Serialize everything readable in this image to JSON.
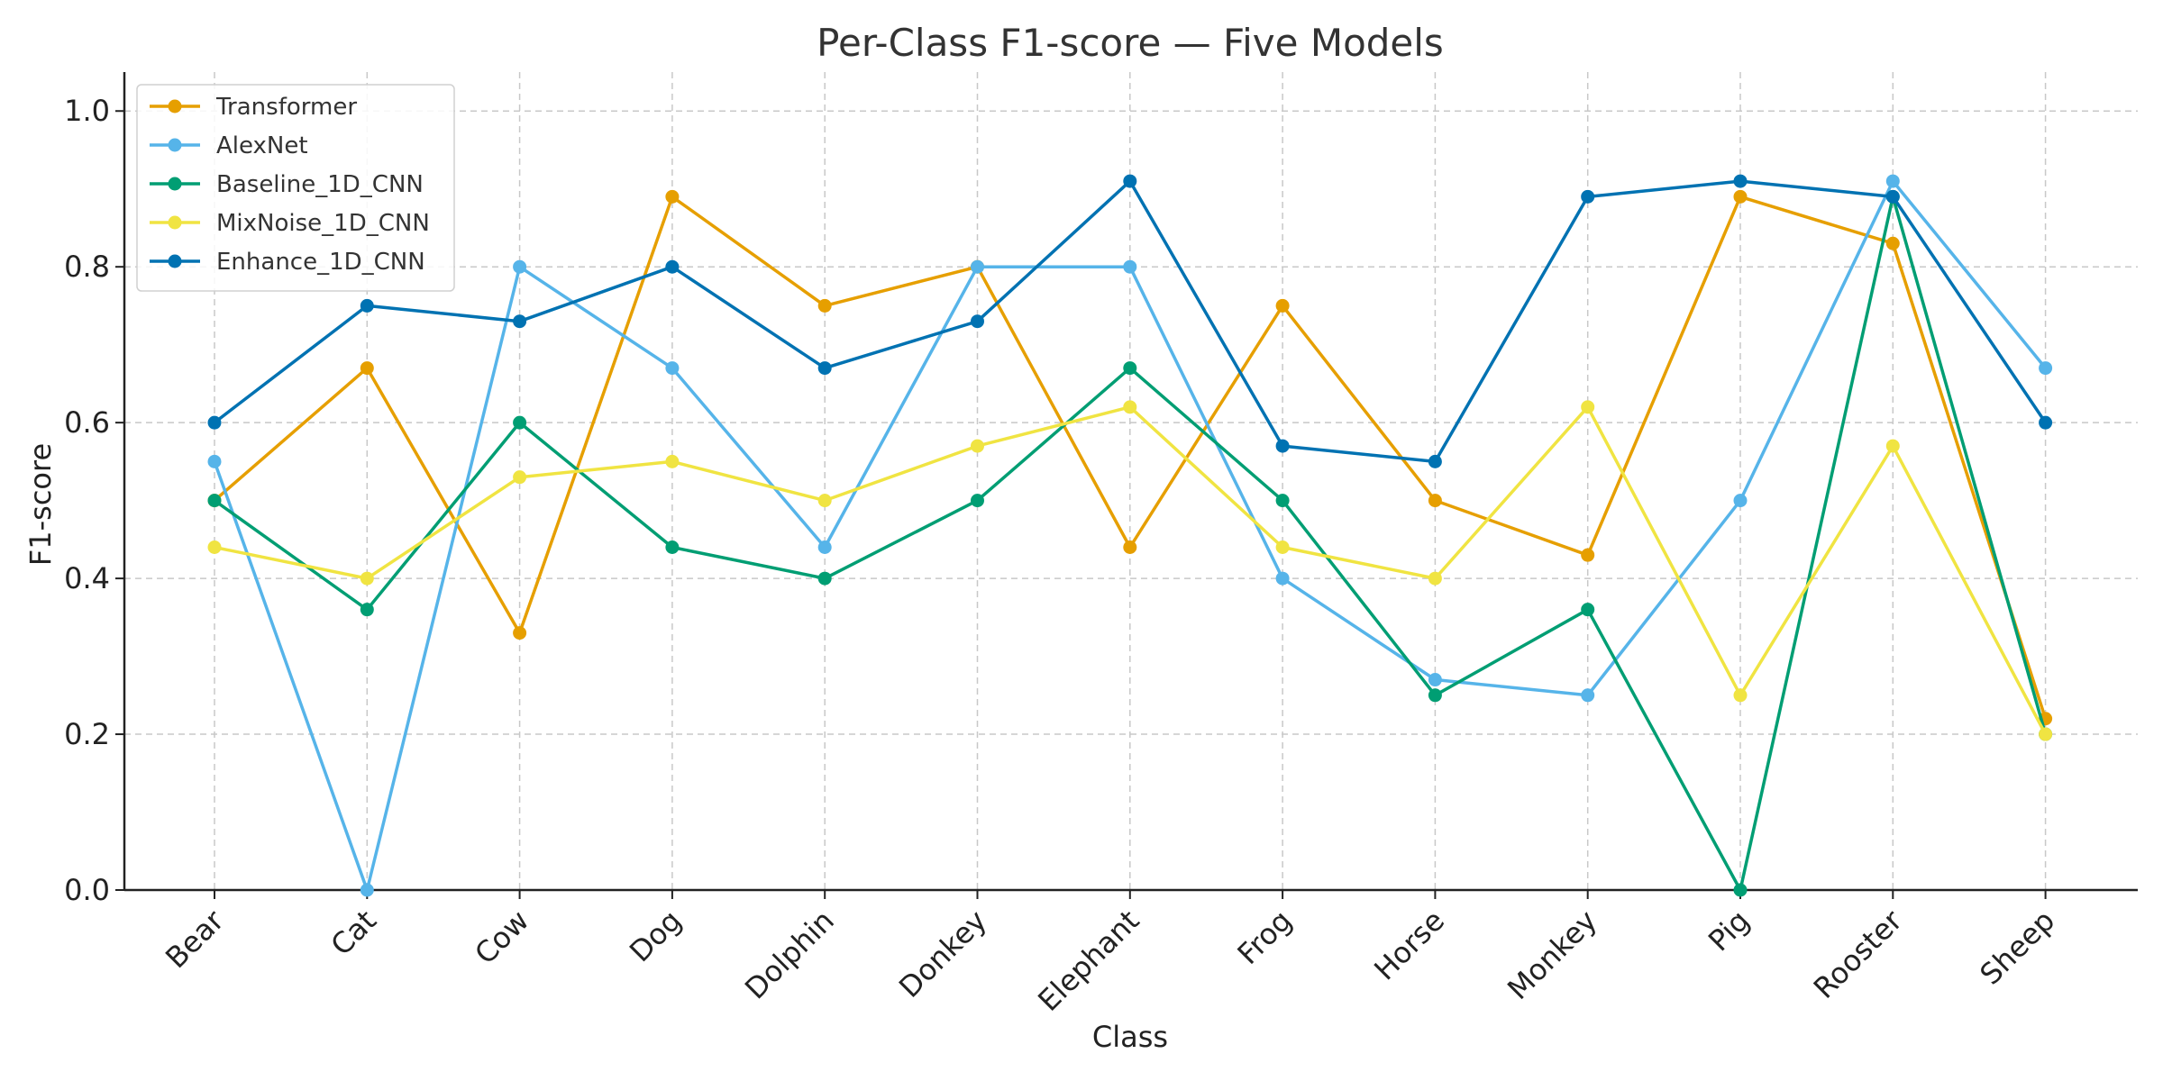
{
  "chart_data": {
    "type": "line",
    "title": "Per-Class F1-score — Five Models",
    "xlabel": "Class",
    "ylabel": "F1-score",
    "ylim": [
      0,
      1.05
    ],
    "yticks": [
      "0.0",
      "0.2",
      "0.4",
      "0.6",
      "0.8",
      "1.0"
    ],
    "grid": true,
    "legend_position": "top-left",
    "categories": [
      "Bear",
      "Cat",
      "Cow",
      "Dog",
      "Dolphin",
      "Donkey",
      "Elephant",
      "Frog",
      "Horse",
      "Monkey",
      "Pig",
      "Rooster",
      "Sheep"
    ],
    "series": [
      {
        "name": "Transformer",
        "color": "#E69F00",
        "values": [
          0.5,
          0.67,
          0.33,
          0.89,
          0.75,
          0.8,
          0.44,
          0.75,
          0.5,
          0.43,
          0.89,
          0.83,
          0.22
        ]
      },
      {
        "name": "AlexNet",
        "color": "#56B4E9",
        "values": [
          0.55,
          0.0,
          0.8,
          0.67,
          0.44,
          0.8,
          0.8,
          0.4,
          0.27,
          0.25,
          0.5,
          0.91,
          0.67
        ]
      },
      {
        "name": "Baseline_1D_CNN",
        "color": "#009E73",
        "values": [
          0.5,
          0.36,
          0.6,
          0.44,
          0.4,
          0.5,
          0.67,
          0.5,
          0.25,
          0.36,
          0.0,
          0.89,
          0.2
        ]
      },
      {
        "name": "MixNoise_1D_CNN",
        "color": "#F0E442",
        "values": [
          0.44,
          0.4,
          0.53,
          0.55,
          0.5,
          0.57,
          0.62,
          0.44,
          0.4,
          0.62,
          0.25,
          0.57,
          0.2
        ]
      },
      {
        "name": "Enhance_1D_CNN",
        "color": "#0072B2",
        "values": [
          0.6,
          0.75,
          0.73,
          0.8,
          0.67,
          0.73,
          0.91,
          0.57,
          0.55,
          0.89,
          0.91,
          0.89,
          0.6
        ]
      }
    ]
  }
}
